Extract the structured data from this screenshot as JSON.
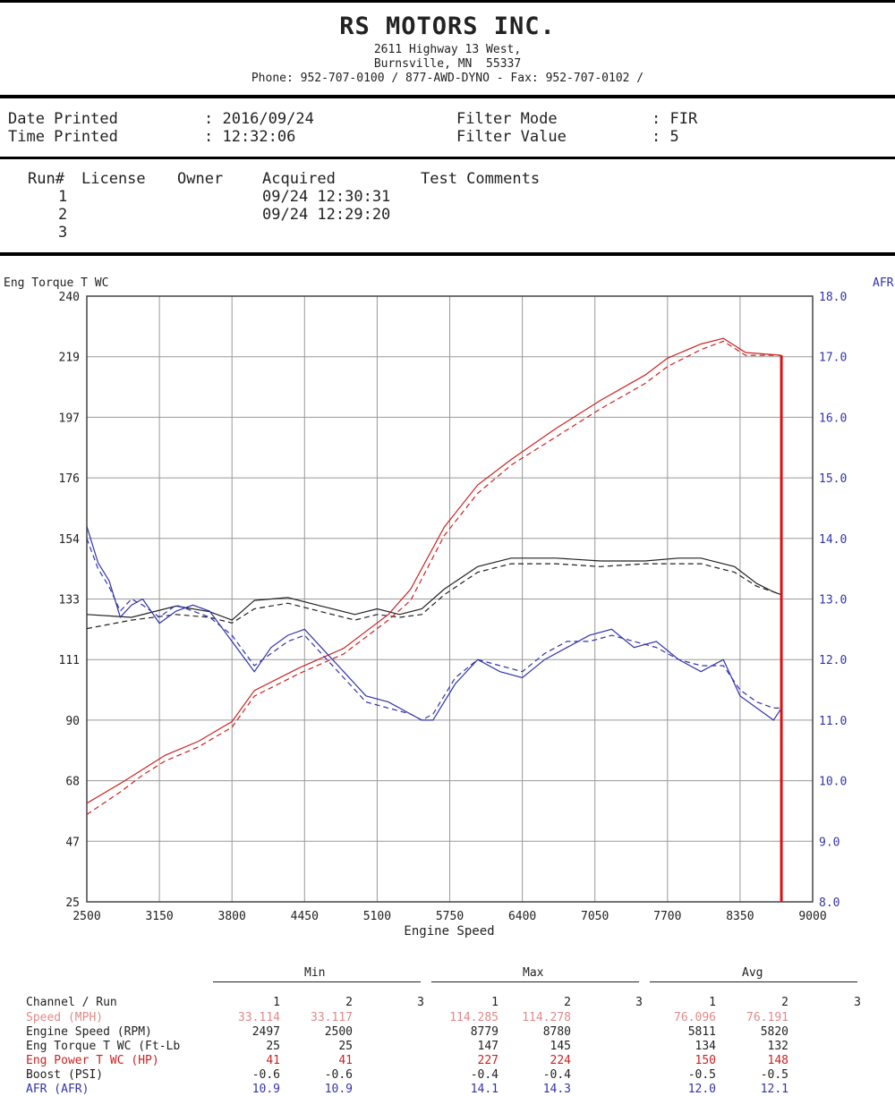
{
  "header": {
    "company": "RS MOTORS INC.",
    "address1": "2611 Highway 13 West,",
    "address2": "Burnsville, MN  55337",
    "phone": "Phone: 952-707-0100 / 877-AWD-DYNO - Fax: 952-707-0102 /"
  },
  "info": {
    "date_label": "Date Printed",
    "date_value": ": 2016/09/24",
    "time_label": "Time Printed",
    "time_value": ": 12:32:06",
    "filter_mode_label": "Filter Mode",
    "filter_mode_value": ": FIR",
    "filter_value_label": "Filter Value",
    "filter_value_value": ": 5"
  },
  "runs": {
    "headers": [
      "Run#",
      "License",
      "Owner",
      "Acquired",
      "Test Comments"
    ],
    "rows": [
      {
        "run": "1",
        "acquired": "09/24 12:30:31"
      },
      {
        "run": "2",
        "acquired": "09/24 12:29:20"
      },
      {
        "run": "3",
        "acquired": ""
      }
    ]
  },
  "chart_data": {
    "type": "line",
    "xlabel": "Engine Speed",
    "ylabel_left": "Eng Torque T WC",
    "ylabel_right": "AFR",
    "xlim": [
      2500,
      9000
    ],
    "ylim_left": [
      25,
      240
    ],
    "ylim_right": [
      8.0,
      18.0
    ],
    "x_ticks": [
      "2500",
      "3150",
      "3800",
      "4450",
      "5100",
      "5750",
      "6400",
      "7050",
      "7700",
      "8350",
      "9000"
    ],
    "y_ticks_left": [
      "25",
      "47",
      "68",
      "90",
      "111",
      "133",
      "154",
      "176",
      "197",
      "219",
      "240"
    ],
    "y_ticks_right": [
      "8.0",
      "9.0",
      "10.0",
      "11.0",
      "12.0",
      "13.0",
      "14.0",
      "15.0",
      "16.0",
      "17.0",
      "18.0"
    ],
    "grid": true,
    "colors": {
      "torque": "#222222",
      "power": "#cc2222",
      "afr": "#3333aa"
    },
    "series": [
      {
        "run": "1",
        "axis": "left",
        "color": "#222222",
        "dash": false,
        "x": [
          2500,
          2900,
          3300,
          3600,
          3800,
          4000,
          4300,
          4600,
          4900,
          5100,
          5300,
          5500,
          5700,
          6000,
          6300,
          6700,
          7100,
          7500,
          7800,
          8000,
          8300,
          8500,
          8650,
          8720
        ],
        "y": [
          127,
          126,
          130,
          128,
          125,
          132,
          133,
          130,
          127,
          129,
          127,
          129,
          136,
          144,
          147,
          147,
          146,
          146,
          147,
          147,
          144,
          138,
          135,
          134
        ]
      },
      {
        "run": "2",
        "axis": "left",
        "color": "#222222",
        "dash": true,
        "x": [
          2500,
          2900,
          3300,
          3600,
          3800,
          4000,
          4300,
          4600,
          4900,
          5100,
          5300,
          5500,
          5700,
          6000,
          6300,
          6700,
          7100,
          7500,
          7800,
          8000,
          8300,
          8500,
          8650,
          8720
        ],
        "y": [
          122,
          125,
          127,
          126,
          124,
          129,
          131,
          128,
          125,
          127,
          126,
          127,
          134,
          142,
          145,
          145,
          144,
          145,
          145,
          145,
          142,
          137,
          135,
          134
        ]
      },
      {
        "run": "1",
        "axis": "left",
        "color": "#cc2222",
        "dash": false,
        "x": [
          2500,
          2800,
          3000,
          3200,
          3500,
          3800,
          4000,
          4400,
          4800,
          5000,
          5200,
          5400,
          5700,
          6000,
          6300,
          6700,
          7100,
          7500,
          7700,
          8000,
          8200,
          8400,
          8720
        ],
        "y": [
          60,
          67,
          72,
          77,
          82,
          89,
          100,
          108,
          115,
          121,
          127,
          136,
          158,
          173,
          182,
          193,
          203,
          212,
          218,
          223,
          225,
          220,
          219
        ]
      },
      {
        "run": "2",
        "axis": "left",
        "color": "#cc2222",
        "dash": true,
        "x": [
          2500,
          2800,
          3000,
          3200,
          3500,
          3800,
          4000,
          4400,
          4800,
          5000,
          5200,
          5400,
          5700,
          6000,
          6300,
          6700,
          7100,
          7500,
          7700,
          8000,
          8200,
          8400,
          8720
        ],
        "y": [
          56,
          64,
          70,
          75,
          80,
          87,
          98,
          106,
          113,
          119,
          125,
          132,
          155,
          170,
          180,
          190,
          200,
          209,
          215,
          221,
          224,
          219,
          219
        ]
      },
      {
        "run": "1",
        "axis": "right",
        "color": "#3333aa",
        "dash": false,
        "x": [
          2500,
          2600,
          2700,
          2800,
          2900,
          3000,
          3150,
          3300,
          3450,
          3600,
          3800,
          4000,
          4150,
          4300,
          4450,
          4600,
          4800,
          5000,
          5200,
          5400,
          5500,
          5600,
          5800,
          6000,
          6200,
          6400,
          6600,
          6800,
          7000,
          7200,
          7400,
          7600,
          7800,
          8000,
          8200,
          8350,
          8500,
          8650,
          8720
        ],
        "y": [
          14.2,
          13.6,
          13.3,
          12.7,
          12.9,
          13.0,
          12.6,
          12.8,
          12.9,
          12.8,
          12.3,
          11.8,
          12.2,
          12.4,
          12.5,
          12.2,
          11.8,
          11.4,
          11.3,
          11.1,
          11.0,
          11.0,
          11.6,
          12.0,
          11.8,
          11.7,
          12.0,
          12.2,
          12.4,
          12.5,
          12.2,
          12.3,
          12.0,
          11.8,
          12.0,
          11.4,
          11.2,
          11.0,
          11.2
        ]
      },
      {
        "run": "2",
        "axis": "right",
        "color": "#3333aa",
        "dash": true,
        "x": [
          2500,
          2600,
          2700,
          2800,
          2900,
          3000,
          3150,
          3300,
          3450,
          3600,
          3800,
          4000,
          4150,
          4300,
          4450,
          4600,
          4800,
          5000,
          5200,
          5400,
          5500,
          5600,
          5800,
          6000,
          6200,
          6400,
          6600,
          6800,
          7000,
          7200,
          7400,
          7600,
          7800,
          8000,
          8200,
          8350,
          8500,
          8650,
          8720
        ],
        "y": [
          14.0,
          13.5,
          13.2,
          12.8,
          13.0,
          12.9,
          12.7,
          12.9,
          12.8,
          12.7,
          12.4,
          11.9,
          12.1,
          12.3,
          12.4,
          12.1,
          11.7,
          11.3,
          11.2,
          11.1,
          11.0,
          11.1,
          11.7,
          12.0,
          11.9,
          11.8,
          12.1,
          12.3,
          12.3,
          12.4,
          12.3,
          12.2,
          12.0,
          11.9,
          11.9,
          11.5,
          11.3,
          11.2,
          11.2
        ]
      }
    ]
  },
  "stats": {
    "group_min": "Min",
    "group_max": "Max",
    "group_avg": "Avg",
    "header": {
      "label": "Channel / Run",
      "cols": [
        "1",
        "2",
        "3",
        "1",
        "2",
        "3",
        "1",
        "2",
        "3"
      ]
    },
    "rows": [
      {
        "label": "Speed (MPH)",
        "color": "#e08a8a",
        "vals": [
          "33.114",
          "33.117",
          "",
          "114.285",
          "114.278",
          "",
          "76.096",
          "76.191",
          ""
        ]
      },
      {
        "label": "Engine Speed (RPM)",
        "color": "#222222",
        "vals": [
          "2497",
          "2500",
          "",
          "8779",
          "8780",
          "",
          "5811",
          "5820",
          ""
        ]
      },
      {
        "label": "Eng Torque T WC (Ft-Lb",
        "color": "#222222",
        "vals": [
          "25",
          "25",
          "",
          "147",
          "145",
          "",
          "134",
          "132",
          ""
        ]
      },
      {
        "label": "Eng Power T WC (HP)",
        "color": "#cc2222",
        "vals": [
          "41",
          "41",
          "",
          "227",
          "224",
          "",
          "150",
          "148",
          ""
        ]
      },
      {
        "label": "Boost (PSI)",
        "color": "#222222",
        "vals": [
          "-0.6",
          "-0.6",
          "",
          "-0.4",
          "-0.4",
          "",
          "-0.5",
          "-0.5",
          ""
        ]
      },
      {
        "label": "AFR (AFR)",
        "color": "#3333aa",
        "vals": [
          "10.9",
          "10.9",
          "",
          "14.1",
          "14.3",
          "",
          "12.0",
          "12.1",
          ""
        ]
      }
    ]
  }
}
